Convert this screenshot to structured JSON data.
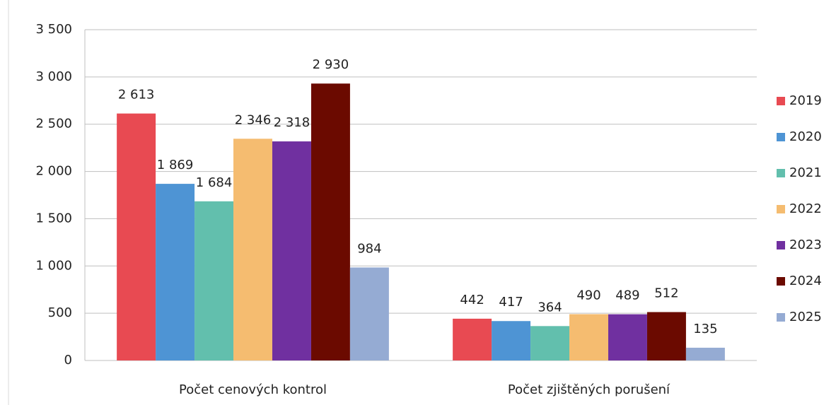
{
  "chart_data": {
    "type": "bar",
    "categories": [
      "Počet cenových kontrol",
      "Počet zjištěných porušení"
    ],
    "series": [
      {
        "name": "2019",
        "color": "#e84a52",
        "values": [
          2613,
          442
        ],
        "value_labels": [
          "2 613",
          "442"
        ]
      },
      {
        "name": "2020",
        "color": "#4e94d4",
        "values": [
          1869,
          417
        ],
        "value_labels": [
          "1 869",
          "417"
        ]
      },
      {
        "name": "2021",
        "color": "#62bfad",
        "values": [
          1684,
          364
        ],
        "value_labels": [
          "1 684",
          "364"
        ]
      },
      {
        "name": "2022",
        "color": "#f5bc70",
        "values": [
          2346,
          490
        ],
        "value_labels": [
          "2 346",
          "490"
        ]
      },
      {
        "name": "2023",
        "color": "#7030a0",
        "values": [
          2318,
          489
        ],
        "value_labels": [
          "2 318",
          "489"
        ]
      },
      {
        "name": "2024",
        "color": "#6b0a00",
        "values": [
          2930,
          512
        ],
        "value_labels": [
          "2 930",
          "512"
        ]
      },
      {
        "name": "2025",
        "color": "#95abd3",
        "values": [
          984,
          135
        ],
        "value_labels": [
          "984",
          "135"
        ]
      }
    ],
    "ylim": [
      0,
      3500
    ],
    "yticks": [
      0,
      500,
      {
        "value": 1000,
        "label": "1 000"
      },
      {
        "value": 1500,
        "label": "1 500"
      },
      {
        "value": 2000,
        "label": "2 000"
      },
      {
        "value": 2500,
        "label": "2 500"
      },
      {
        "value": 3000,
        "label": "3 000"
      },
      {
        "value": 3500,
        "label": "3 500"
      }
    ],
    "grid": true,
    "legend": "right"
  }
}
